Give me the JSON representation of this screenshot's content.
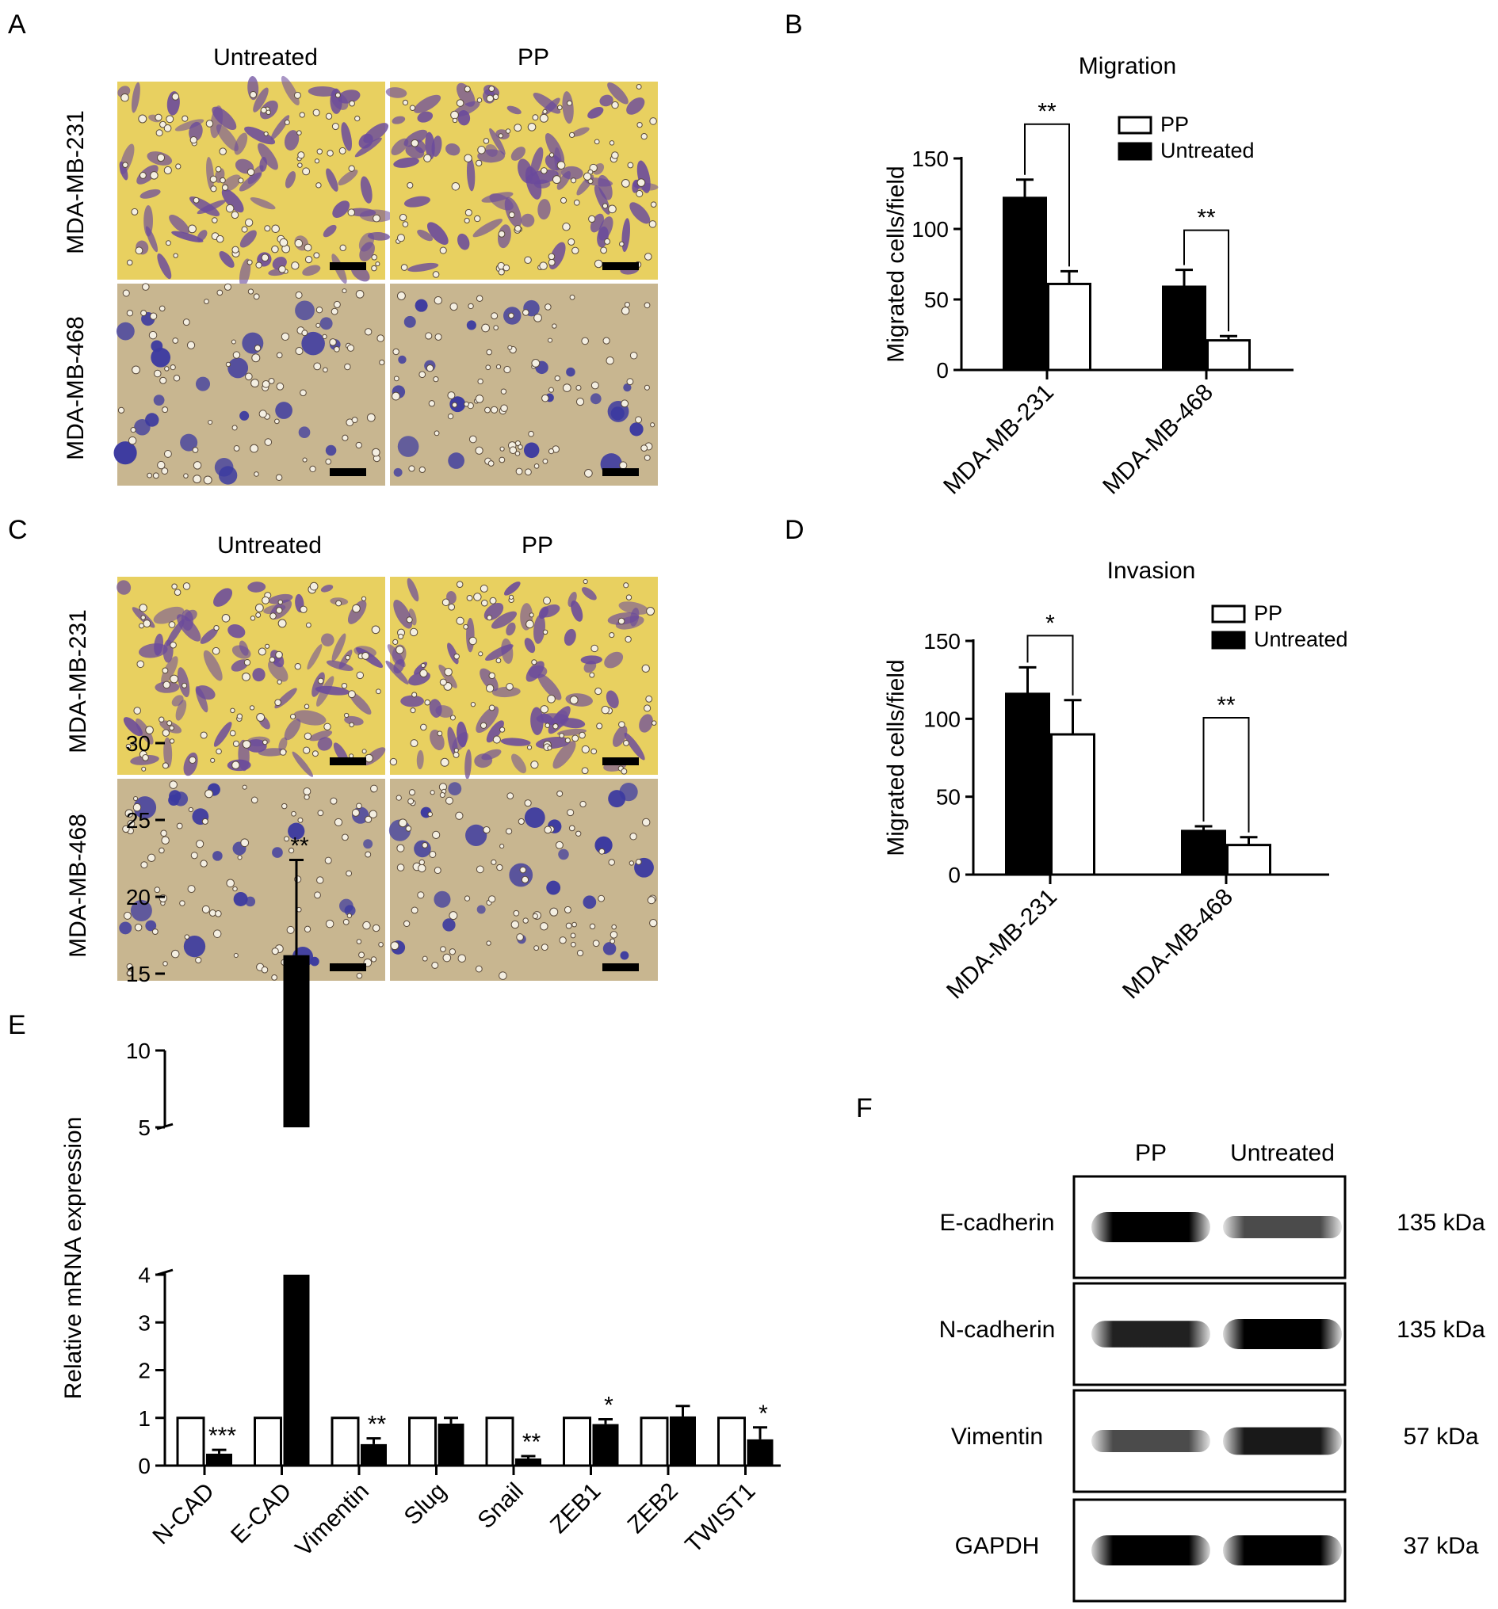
{
  "panels": {
    "A": {
      "letter": "A",
      "cols": [
        "Untreated",
        "PP"
      ],
      "rows": [
        "MDA-MB-231",
        "MDA-MB-468"
      ]
    },
    "B": {
      "letter": "B"
    },
    "C": {
      "letter": "C",
      "cols": [
        "Untreated",
        "PP"
      ],
      "rows": [
        "MDA-MB-231",
        "MDA-MB-468"
      ]
    },
    "D": {
      "letter": "D"
    },
    "E": {
      "letter": "E"
    },
    "F": {
      "letter": "F",
      "lanes": [
        "PP",
        "Untreated"
      ],
      "proteins": [
        {
          "name": "E-cadherin",
          "kda": "135 kDa",
          "lane_intensity": [
            1.0,
            0.55
          ]
        },
        {
          "name": "N-cadherin",
          "kda": "135 kDa",
          "lane_intensity": [
            0.8,
            1.0
          ]
        },
        {
          "name": "Vimentin",
          "kda": "57 kDa",
          "lane_intensity": [
            0.55,
            0.85
          ]
        },
        {
          "name": "GAPDH",
          "kda": "37 kDa",
          "lane_intensity": [
            1.0,
            1.0
          ]
        }
      ]
    }
  },
  "colors": {
    "untreated": "#000000",
    "pp": "#ffffff",
    "stain_yellow": "#e8d060",
    "stain_tan": "#c8b690",
    "cell_purple": "#6a4a9c",
    "cell_blue": "#3c3aa0"
  },
  "chart_data": [
    {
      "type": "bar",
      "title": "Migration",
      "xlabel": "",
      "ylabel": "Migrated cells/field",
      "ylim": [
        0,
        150
      ],
      "yticks": [
        0,
        50,
        100,
        150
      ],
      "categories": [
        "MDA-MB-231",
        "MDA-MB-468"
      ],
      "legend": [
        "PP",
        "Untreated"
      ],
      "legend_position": "top-right",
      "series": [
        {
          "name": "Untreated",
          "values": [
            122,
            59
          ],
          "errors": [
            13,
            12
          ]
        },
        {
          "name": "PP",
          "values": [
            61,
            21
          ],
          "errors": [
            9,
            3
          ]
        }
      ],
      "significance": [
        "**",
        "**"
      ]
    },
    {
      "type": "bar",
      "title": "Invasion",
      "xlabel": "",
      "ylabel": "Migrated cells/field",
      "ylim": [
        0,
        150
      ],
      "yticks": [
        0,
        50,
        100,
        150
      ],
      "categories": [
        "MDA-MB-231",
        "MDA-MB-468"
      ],
      "legend": [
        "PP",
        "Untreated"
      ],
      "legend_position": "top-right",
      "series": [
        {
          "name": "Untreated",
          "values": [
            116,
            28
          ],
          "errors": [
            17,
            3
          ]
        },
        {
          "name": "PP",
          "values": [
            90,
            19
          ],
          "errors": [
            22,
            5
          ]
        }
      ],
      "significance": [
        "*",
        "**"
      ]
    },
    {
      "type": "bar",
      "title": "",
      "xlabel": "",
      "ylabel": "Relative mRNA expression",
      "axis_break": [
        4,
        5
      ],
      "ylim": [
        0,
        30
      ],
      "yticks": [
        0,
        1,
        2,
        3,
        4,
        5,
        10,
        15,
        20,
        25,
        30
      ],
      "categories": [
        "N-CAD",
        "E-CAD",
        "Vimentin",
        "Slug",
        "Snail",
        "ZEB1",
        "ZEB2",
        "TWIST1"
      ],
      "series": [
        {
          "values": [
            1,
            1,
            1,
            1,
            1,
            1,
            1,
            1
          ],
          "errors": [
            0,
            0,
            0,
            0,
            0,
            0,
            0,
            0
          ]
        },
        {
          "values": [
            0.25,
            16.2,
            0.45,
            0.88,
            0.15,
            0.87,
            1.03,
            0.55
          ],
          "errors": [
            0.08,
            6.2,
            0.12,
            0.12,
            0.05,
            0.1,
            0.22,
            0.25
          ]
        }
      ],
      "significance": [
        "***",
        "**",
        "**",
        "",
        "**",
        "*",
        "",
        "*"
      ]
    }
  ]
}
